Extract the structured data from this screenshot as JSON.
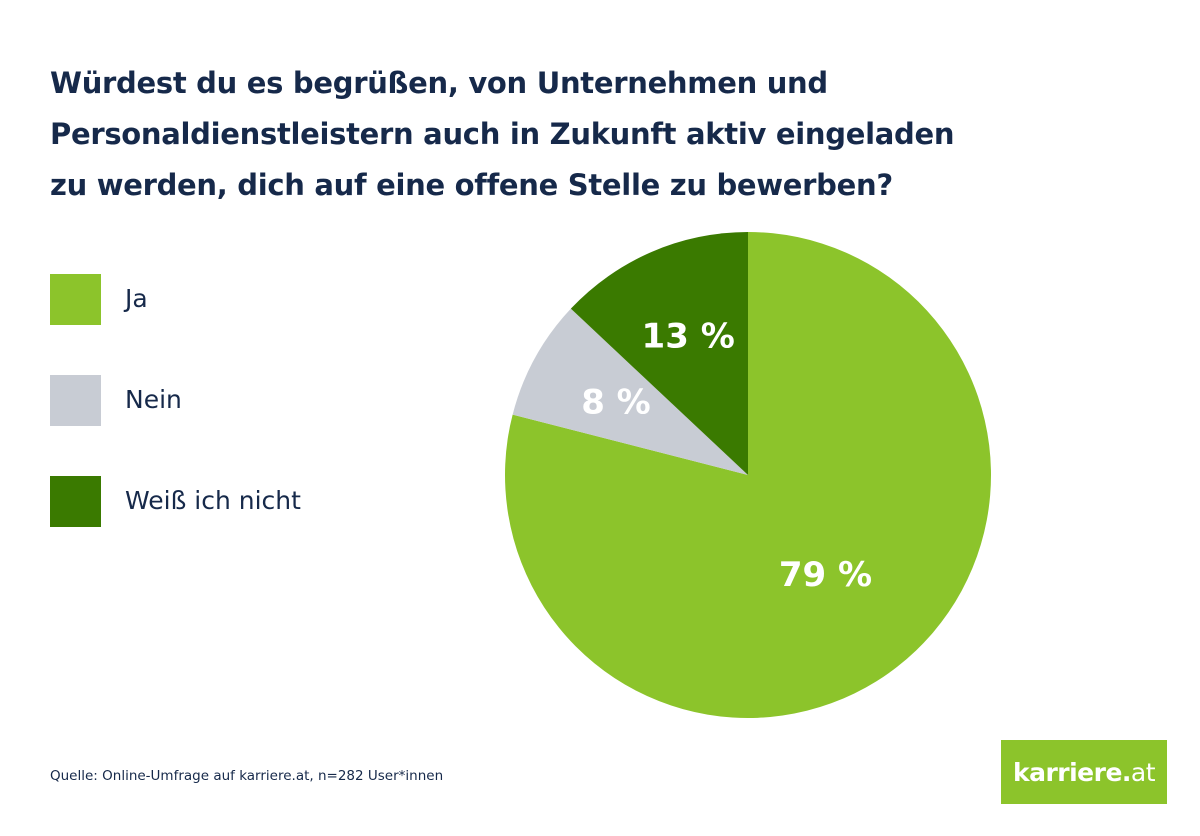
{
  "chart_data": {
    "type": "pie",
    "title": "Würdest du es begrüßen, von Unternehmen und Personaldienstleistern auch in Zukunft aktiv eingeladen zu werden, dich auf eine offene Stelle zu bewerben?",
    "title_lines": [
      "Würdest du es begrüßen, von Unternehmen und",
      "Personaldienstleistern auch in Zukunft aktiv eingeladen",
      "zu werden, dich auf eine offene Stelle zu bewerben?"
    ],
    "slices": [
      {
        "label": "Ja",
        "value": 79,
        "display": "79 %",
        "color": "#8cc42b"
      },
      {
        "label": "Nein",
        "value": 8,
        "display": "8 %",
        "color": "#c8ccd4"
      },
      {
        "label": "Weiß ich nicht",
        "value": 13,
        "display": "13 %",
        "color": "#3a7a00"
      }
    ],
    "legend_position": "left",
    "start_angle": "top",
    "direction": "clockwise-from-top: Ja, then Nein, then Weiß ich nicht",
    "units": "%"
  },
  "legend": {
    "items": [
      {
        "label": "Ja",
        "color": "#8cc42b"
      },
      {
        "label": "Nein",
        "color": "#c8ccd4"
      },
      {
        "label": "Weiß ich nicht",
        "color": "#3a7a00"
      }
    ]
  },
  "footer": {
    "source": "Quelle: Online-Umfrage auf karriere.at, n=282 User*innen",
    "logo_bold": "karriere.",
    "logo_thin": "at",
    "logo_color": "#8cc42b"
  },
  "colors": {
    "title": "#16294a"
  }
}
